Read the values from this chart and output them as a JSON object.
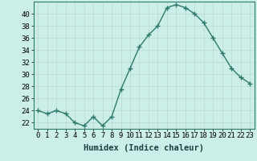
{
  "title": "",
  "xlabel": "Humidex (Indice chaleur)",
  "x": [
    0,
    1,
    2,
    3,
    4,
    5,
    6,
    7,
    8,
    9,
    10,
    11,
    12,
    13,
    14,
    15,
    16,
    17,
    18,
    19,
    20,
    21,
    22,
    23
  ],
  "y": [
    24,
    23.5,
    24,
    23.5,
    22,
    21.5,
    23,
    21.5,
    23,
    27.5,
    31,
    34.5,
    36.5,
    38,
    41,
    41.5,
    41,
    40,
    38.5,
    36,
    33.5,
    31,
    29.5,
    28.5
  ],
  "line_color": "#2d7a6a",
  "marker": "+",
  "marker_size": 4,
  "bg_color": "#cceee8",
  "grid_color": "#b8d8d0",
  "ylim": [
    21.0,
    42.0
  ],
  "yticks": [
    22,
    24,
    26,
    28,
    30,
    32,
    34,
    36,
    38,
    40
  ],
  "tick_fontsize": 6.5,
  "xlabel_fontsize": 7.5,
  "lw": 1.0
}
